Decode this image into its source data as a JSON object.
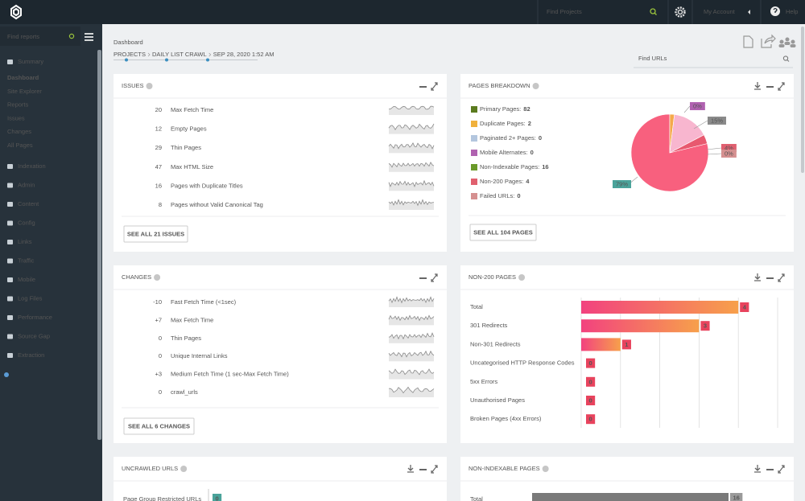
{
  "topbar": {
    "search_placeholder": "Find Projects",
    "account": "My Account",
    "help": "Help"
  },
  "sidebar": {
    "search_placeholder": "Find reports",
    "groups": [
      {
        "label": "Summary",
        "items": [
          "Dashboard",
          "Site Explorer",
          "Reports",
          "Issues",
          "Changes",
          "All Pages"
        ]
      },
      {
        "label": "Indexation"
      },
      {
        "label": "Admin"
      },
      {
        "label": "Content"
      },
      {
        "label": "Config"
      },
      {
        "label": "Links"
      },
      {
        "label": "Traffic"
      },
      {
        "label": "Mobile"
      },
      {
        "label": "Log Files"
      },
      {
        "label": "Performance"
      },
      {
        "label": "Source Gap"
      },
      {
        "label": "Extraction"
      }
    ]
  },
  "header": {
    "title": "Dashboard",
    "breadcrumb": [
      "PROJECTS",
      "DAILY LIST CRAWL",
      "SEP 28, 2020 1:52 AM"
    ],
    "find_urls": "Find URLs"
  },
  "issues": {
    "title": "ISSUES",
    "rows": [
      {
        "count": 20,
        "label": "Max Fetch Time"
      },
      {
        "count": 12,
        "label": "Empty Pages"
      },
      {
        "count": 29,
        "label": "Thin Pages"
      },
      {
        "count": 47,
        "label": "Max HTML Size"
      },
      {
        "count": 16,
        "label": "Pages with Duplicate Titles"
      },
      {
        "count": 8,
        "label": "Pages without Valid Canonical Tag"
      }
    ],
    "button": "SEE ALL 21 ISSUES"
  },
  "pages_breakdown": {
    "title": "PAGES BREAKDOWN",
    "legend": [
      {
        "label": "Primary Pages:",
        "value": 82,
        "color": "#5b7b1f",
        "slice_color": "#f8607e"
      },
      {
        "label": "Duplicate Pages:",
        "value": 2,
        "color": "#f0b13c",
        "slice_color": "#f5a94a"
      },
      {
        "label": "Paginated 2+ Pages:",
        "value": 0,
        "color": "#b3c6de",
        "slice_color": "#b3c6de"
      },
      {
        "label": "Mobile Alternates:",
        "value": 0,
        "color": "#b062b0",
        "slice_color": "#b062b0"
      },
      {
        "label": "Non-Indexable Pages:",
        "value": 16,
        "color": "#6a9a2a",
        "slice_color": "#f8b6cf"
      },
      {
        "label": "Non-200 Pages:",
        "value": 4,
        "color": "#e0606e",
        "slice_color": "#e8596f"
      },
      {
        "label": "Failed URLs:",
        "value": 0,
        "color": "#d59090",
        "slice_color": "#d59090"
      }
    ],
    "slice_labels": [
      "0%",
      "15%",
      "4%",
      "0%",
      "79%"
    ],
    "button": "SEE ALL 104 PAGES"
  },
  "changes": {
    "title": "CHANGES",
    "rows": [
      {
        "change": "-10",
        "label": "Fast Fetch Time (<1sec)",
        "color": "#333333"
      },
      {
        "change": "+7",
        "label": "Max Fetch Time",
        "color": "#e0564f"
      },
      {
        "change": "0",
        "label": "Thin Pages",
        "color": "#e0564f"
      },
      {
        "change": "0",
        "label": "Unique Internal Links",
        "color": "#333333"
      },
      {
        "change": "+3",
        "label": "Medium Fetch Time (1 sec-Max Fetch Time)",
        "color": "#333333"
      },
      {
        "change": "0",
        "label": "crawl_urls",
        "color": "#333333"
      }
    ],
    "button": "SEE ALL 6 CHANGES"
  },
  "non200": {
    "title": "NON-200 PAGES",
    "categories": [
      "Total",
      "301 Redirects",
      "Non-301 Redirects",
      "Uncategorised HTTP Response Codes",
      "5xx Errors",
      "Unauthorised Pages",
      "Broken Pages (4xx Errors)"
    ],
    "values": [
      4,
      3,
      1,
      0,
      0,
      0,
      0
    ],
    "xlim": [
      0,
      5
    ],
    "xticks": [
      0,
      1,
      2,
      3,
      4,
      5
    ],
    "color": "#f2427f",
    "color_end": "#f7a04b",
    "label_color": "#e8435d"
  },
  "uncrawled": {
    "title": "UNCRAWLED URLS",
    "categories": [
      "Page Group Restricted URLs"
    ],
    "values": [
      0
    ],
    "label_color": "#4aa39a"
  },
  "non_indexable": {
    "title": "NON-INDEXABLE PAGES",
    "categories": [
      "Total"
    ],
    "values": [
      16
    ],
    "xlim": [
      0,
      20
    ],
    "color": "#7a7a7a",
    "label_color": "#9a9a9a"
  }
}
